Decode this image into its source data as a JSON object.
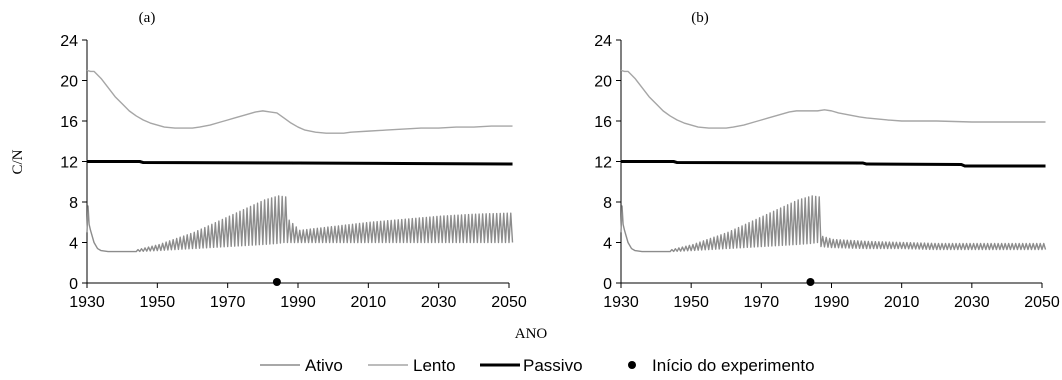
{
  "figure": {
    "ylabel": "C/N",
    "xlabel": "ANO",
    "legend": {
      "placement": "bottom-center",
      "entries": [
        {
          "label": "Ativo",
          "kind": "line",
          "color": "#8c8c8c"
        },
        {
          "label": "Lento",
          "kind": "line",
          "color": "#a6a6a6"
        },
        {
          "label": "Passivo",
          "kind": "line",
          "color": "#000000"
        },
        {
          "label": "Início do experimento",
          "kind": "marker",
          "color": "#000000"
        }
      ]
    }
  },
  "chart_data": [
    {
      "type": "line",
      "panel_label": "(a)",
      "xlim": [
        1930,
        2050
      ],
      "ylim": [
        0,
        24
      ],
      "xticks": [
        "1930",
        "1950",
        "1970",
        "1990",
        "2010",
        "2030",
        "2050"
      ],
      "yticks": [
        "0",
        "4",
        "8",
        "12",
        "16",
        "20",
        "24"
      ],
      "grid": false,
      "series": [
        {
          "name": "Lento",
          "color": "#a6a6a6",
          "x": [
            1930,
            1931,
            1932,
            1934,
            1936,
            1938,
            1940,
            1942,
            1944,
            1946,
            1948,
            1950,
            1952,
            1955,
            1958,
            1960,
            1962,
            1965,
            1968,
            1970,
            1972,
            1975,
            1978,
            1980,
            1982,
            1984,
            1986,
            1988,
            1990,
            1992,
            1995,
            1998,
            2000,
            2003,
            2005,
            2010,
            2015,
            2020,
            2025,
            2030,
            2035,
            2040,
            2045,
            2050,
            2051
          ],
          "y": [
            21.0,
            20.9,
            20.9,
            20.2,
            19.3,
            18.4,
            17.7,
            17.0,
            16.5,
            16.1,
            15.8,
            15.6,
            15.4,
            15.3,
            15.3,
            15.3,
            15.4,
            15.6,
            15.9,
            16.1,
            16.3,
            16.6,
            16.9,
            17.0,
            16.9,
            16.8,
            16.3,
            15.8,
            15.4,
            15.1,
            14.9,
            14.8,
            14.8,
            14.8,
            14.9,
            15.0,
            15.1,
            15.2,
            15.3,
            15.3,
            15.4,
            15.4,
            15.5,
            15.5,
            15.5
          ]
        },
        {
          "name": "Passivo",
          "color": "#000000",
          "x": [
            1930,
            1945,
            1946,
            1990,
            2020,
            2050,
            2051
          ],
          "y": [
            12.0,
            12.0,
            11.9,
            11.85,
            11.8,
            11.75,
            11.75
          ]
        },
        {
          "name": "Ativo",
          "color": "#8c8c8c",
          "x": [
            1930,
            1930.3,
            1930.6,
            1931,
            1932,
            1933,
            1934,
            1936,
            1938,
            1940,
            1942,
            1944
          ],
          "y": [
            5.0,
            7.6,
            5.8,
            5.2,
            4.0,
            3.4,
            3.2,
            3.1,
            3.1,
            3.1,
            3.1,
            3.1
          ],
          "oscillation": {
            "start": 1944,
            "end": 2051,
            "period": 1,
            "envelope_x": [
              1944,
              1950,
              1960,
              1970,
              1980,
              1984,
              1986,
              1987,
              1990,
              2000,
              2010,
              2020,
              2030,
              2040,
              2050,
              2051
            ],
            "low": [
              3.1,
              3.2,
              3.4,
              3.6,
              3.8,
              3.9,
              4.0,
              4.0,
              4.0,
              4.0,
              4.0,
              4.0,
              4.0,
              4.0,
              4.0,
              4.0
            ],
            "high": [
              3.3,
              3.8,
              5.0,
              6.6,
              8.2,
              8.6,
              8.5,
              6.2,
              5.2,
              5.6,
              6.0,
              6.3,
              6.6,
              6.8,
              6.9,
              6.9
            ]
          }
        },
        {
          "name": "Início do experimento",
          "kind": "marker",
          "color": "#000000",
          "x": [
            1984
          ],
          "y": [
            0.1
          ]
        }
      ]
    },
    {
      "type": "line",
      "panel_label": "(b)",
      "xlim": [
        1930,
        2050
      ],
      "ylim": [
        0,
        24
      ],
      "xticks": [
        "1930",
        "1950",
        "1970",
        "1990",
        "2010",
        "2030",
        "2050"
      ],
      "yticks": [
        "0",
        "4",
        "8",
        "12",
        "16",
        "20",
        "24"
      ],
      "grid": false,
      "series": [
        {
          "name": "Lento",
          "color": "#a6a6a6",
          "x": [
            1930,
            1931,
            1932,
            1934,
            1936,
            1938,
            1940,
            1942,
            1944,
            1946,
            1948,
            1950,
            1952,
            1955,
            1958,
            1960,
            1962,
            1965,
            1968,
            1970,
            1972,
            1975,
            1978,
            1980,
            1982,
            1984,
            1986,
            1988,
            1990,
            1992,
            1995,
            1998,
            2000,
            2003,
            2006,
            2010,
            2015,
            2020,
            2025,
            2030,
            2040,
            2050,
            2051
          ],
          "y": [
            21.0,
            20.9,
            20.9,
            20.2,
            19.3,
            18.4,
            17.7,
            17.0,
            16.5,
            16.1,
            15.8,
            15.6,
            15.4,
            15.3,
            15.3,
            15.3,
            15.4,
            15.6,
            15.9,
            16.1,
            16.3,
            16.6,
            16.9,
            17.0,
            17.0,
            17.0,
            17.0,
            17.1,
            17.0,
            16.8,
            16.6,
            16.4,
            16.3,
            16.2,
            16.1,
            16.0,
            16.0,
            16.0,
            15.95,
            15.9,
            15.9,
            15.9,
            15.9
          ]
        },
        {
          "name": "Passivo",
          "color": "#000000",
          "x": [
            1930,
            1945,
            1946,
            1999,
            2000,
            2027,
            2028,
            2050,
            2051
          ],
          "y": [
            12.0,
            12.0,
            11.9,
            11.85,
            11.75,
            11.7,
            11.55,
            11.55,
            11.55
          ]
        },
        {
          "name": "Ativo",
          "color": "#8c8c8c",
          "x": [
            1930,
            1930.3,
            1930.6,
            1931,
            1932,
            1933,
            1934,
            1936,
            1938,
            1940,
            1942,
            1944
          ],
          "y": [
            5.0,
            7.6,
            5.8,
            5.2,
            4.0,
            3.4,
            3.2,
            3.1,
            3.1,
            3.1,
            3.1,
            3.1
          ],
          "oscillation": {
            "start": 1944,
            "end": 2051,
            "period": 1,
            "envelope_x": [
              1944,
              1950,
              1960,
              1970,
              1980,
              1984,
              1986,
              1987,
              1990,
              2000,
              2010,
              2020,
              2030,
              2040,
              2050,
              2051
            ],
            "low": [
              3.1,
              3.2,
              3.4,
              3.6,
              3.8,
              3.9,
              4.0,
              3.6,
              3.5,
              3.4,
              3.4,
              3.3,
              3.3,
              3.3,
              3.3,
              3.3
            ],
            "high": [
              3.3,
              3.8,
              5.0,
              6.6,
              8.2,
              8.6,
              8.5,
              4.6,
              4.3,
              4.1,
              4.0,
              3.9,
              3.9,
              3.9,
              3.9,
              3.9
            ]
          }
        },
        {
          "name": "Início do experimento",
          "kind": "marker",
          "color": "#000000",
          "x": [
            1984
          ],
          "y": [
            0.1
          ]
        }
      ]
    }
  ]
}
